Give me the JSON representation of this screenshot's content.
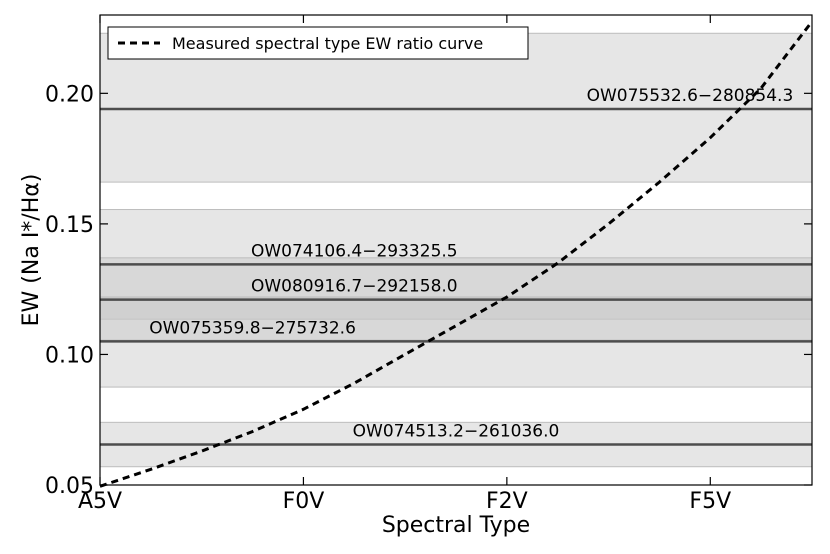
{
  "chart_data": {
    "type": "line",
    "title": "",
    "xlabel": "Spectral Type",
    "ylabel": "EW (Na I*/Hα)",
    "categories": [
      "A5V",
      "F0V",
      "F2V",
      "F5V"
    ],
    "ylim": [
      0.05,
      0.23
    ],
    "yticks": [
      0.05,
      0.1,
      0.15,
      0.2
    ],
    "ytick_labels": [
      "0.05",
      "0.10",
      "0.15",
      "0.20"
    ],
    "grid": false,
    "legend": {
      "position": "top-left",
      "entries": [
        "Measured spectral type EW ratio curve"
      ]
    },
    "series": [
      {
        "name": "Measured spectral type EW ratio curve",
        "style": "dashed",
        "x": [
          0,
          0.25,
          0.5,
          0.75,
          1.0,
          1.25,
          1.5,
          1.75,
          2.0,
          2.25,
          2.5,
          2.75,
          3.0,
          3.25,
          3.5
        ],
        "y": [
          0.0495,
          0.056,
          0.063,
          0.0705,
          0.079,
          0.089,
          0.1,
          0.111,
          0.122,
          0.135,
          0.15,
          0.166,
          0.183,
          0.202,
          0.2275
        ]
      }
    ],
    "objects": [
      {
        "label": "OW075532.6−280854.3",
        "value": 0.194,
        "low": 0.166,
        "high": 0.223,
        "label_x": 2.9
      },
      {
        "label": "OW074106.4−293325.5",
        "value": 0.1345,
        "low": 0.1135,
        "high": 0.1555,
        "label_x": 1.25
      },
      {
        "label": "OW080916.7−292158.0",
        "value": 0.121,
        "low": 0.1055,
        "high": 0.137,
        "label_x": 1.25
      },
      {
        "label": "OW075359.8−275732.6",
        "value": 0.105,
        "low": 0.0875,
        "high": 0.122,
        "label_x": 0.75
      },
      {
        "label": "OW074513.2−261036.0",
        "value": 0.0655,
        "low": 0.057,
        "high": 0.074,
        "label_x": 1.75
      }
    ],
    "colors": {
      "band": "#c8c8c8",
      "line": "#4d4d4d",
      "curve": "#000000"
    }
  }
}
